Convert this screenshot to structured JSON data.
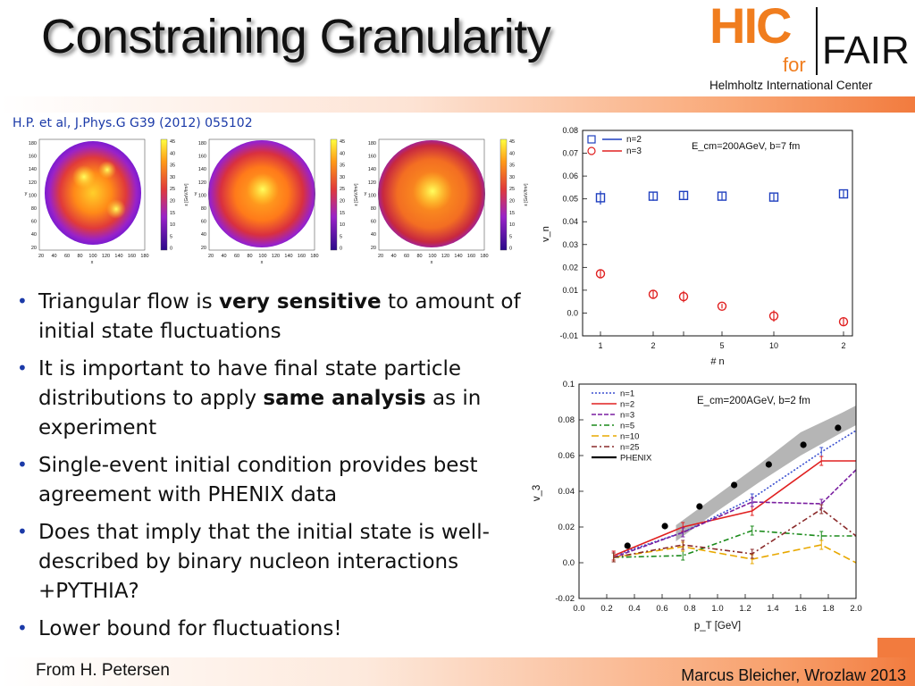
{
  "title": "Constraining Granularity",
  "logo": {
    "hic": "HIC",
    "for": "for",
    "fair": "FAIR",
    "subtitle": "Helmholtz International Center"
  },
  "reference": "H.P. et al, J.Phys.G G39 (2012) 055102",
  "heatmaps": {
    "axis_ticks_y": [
      "180",
      "160",
      "140",
      "120",
      "100",
      "80",
      "60",
      "40",
      "20"
    ],
    "axis_ticks_x": [
      "20",
      "40",
      "60",
      "80",
      "100",
      "120",
      "140",
      "160",
      "180"
    ],
    "colorbar_ticks": [
      "45",
      "40",
      "35",
      "30",
      "25",
      "20",
      "15",
      "10",
      "5",
      "0"
    ],
    "xlabel": "x",
    "ylabel": "y",
    "colorbar_label": "ε [GeV/fm³]"
  },
  "bullets": [
    {
      "pre": "Triangular flow is ",
      "bold": "very sensitive",
      "post": " to amount of initial state fluctuations"
    },
    {
      "pre": "It is important to have final state particle distributions to apply ",
      "bold": "same analysis",
      "post": " as in experiment"
    },
    {
      "pre": "Single-event initial condition provides best agreement with PHENIX data",
      "bold": "",
      "post": ""
    },
    {
      "pre": "Does that imply that the initial state is well-described by binary nucleon interactions +PYTHIA?",
      "bold": "",
      "post": ""
    },
    {
      "pre": "Lower bound for fluctuations!",
      "bold": "",
      "post": ""
    }
  ],
  "footer": {
    "from": "From H. Petersen",
    "author": "Marcus Bleicher, Wrozlaw 2013"
  },
  "colors": {
    "accent": "#f27b3e",
    "blue": "#1f3fbf",
    "red": "#e02020",
    "bullet": "#1b3aa8"
  },
  "chart_data": [
    {
      "type": "scatter",
      "annotation": "E_cm=200AGeV, b=7 fm",
      "ylabel": "v_n",
      "xlabel": "# n",
      "x_ticks": [
        "1",
        "2",
        "",
        "5",
        "10",
        "2"
      ],
      "y_ticks": [
        "0.08",
        "0.07",
        "0.06",
        "0.05",
        "0.04",
        "0.03",
        "0.02",
        "0.01",
        "0.0",
        "-0.01"
      ],
      "ylim": [
        -0.01,
        0.08
      ],
      "series": [
        {
          "name": "n=2",
          "color": "#1f3fbf",
          "marker": "square",
          "values": [
            0.0505,
            0.0512,
            0.0515,
            0.0512,
            0.0508,
            0.0522
          ],
          "errors": [
            0.003,
            0.002,
            0.0015,
            0.0015,
            0.0015,
            0.0015
          ]
        },
        {
          "name": "n=3",
          "color": "#e02020",
          "marker": "circle",
          "values": [
            0.0172,
            0.0082,
            0.0072,
            0.003,
            -0.0013,
            -0.0038
          ],
          "errors": [
            0.0015,
            0.0015,
            0.0025,
            0.001,
            0.0025,
            0.0015
          ]
        }
      ]
    },
    {
      "type": "line",
      "annotation": "E_cm=200AGeV, b=2 fm",
      "ylabel": "v_3",
      "xlabel": "p_T [GeV]",
      "x_ticks": [
        "0.0",
        "0.2",
        "0.4",
        "0.6",
        "0.8",
        "1.0",
        "1.2",
        "1.4",
        "1.6",
        "1.8",
        "2.0"
      ],
      "y_ticks": [
        "0.1",
        "0.08",
        "0.06",
        "0.04",
        "0.02",
        "0.0",
        "-0.02"
      ],
      "xlim": [
        0.0,
        2.0
      ],
      "ylim": [
        -0.02,
        0.1
      ],
      "x": [
        0.25,
        0.75,
        1.25,
        1.75,
        2.0
      ],
      "series": [
        {
          "name": "n=1",
          "color": "#3a4fd0",
          "dash": "2,2",
          "values": [
            0.004,
            0.017,
            0.036,
            0.062,
            0.074
          ]
        },
        {
          "name": "n=2",
          "color": "#e02020",
          "dash": "",
          "values": [
            0.004,
            0.02,
            0.029,
            0.057,
            0.057
          ]
        },
        {
          "name": "n=3",
          "color": "#7a1fa0",
          "dash": "5,2",
          "values": [
            0.003,
            0.017,
            0.034,
            0.033,
            0.052
          ]
        },
        {
          "name": "n=5",
          "color": "#1a8a1a",
          "dash": "6,3,2,3",
          "values": [
            0.003,
            0.004,
            0.018,
            0.015,
            0.015
          ]
        },
        {
          "name": "n=10",
          "color": "#e8a800",
          "dash": "8,4",
          "values": [
            0.003,
            0.009,
            0.002,
            0.01,
            0.0
          ]
        },
        {
          "name": "n=25",
          "color": "#8a2a2a",
          "dash": "6,3,2,3",
          "values": [
            0.003,
            0.01,
            0.005,
            0.03,
            0.015
          ]
        }
      ],
      "phenix": {
        "name": "PHENIX",
        "x": [
          0.35,
          0.62,
          0.87,
          1.12,
          1.37,
          1.62,
          1.87
        ],
        "values": [
          0.0095,
          0.0205,
          0.0315,
          0.0435,
          0.055,
          0.066,
          0.0755
        ]
      },
      "band": {
        "x": [
          0.7,
          1.0,
          1.3,
          1.6,
          1.9,
          2.0
        ],
        "low": [
          0.012,
          0.029,
          0.045,
          0.06,
          0.073,
          0.077
        ],
        "high": [
          0.021,
          0.038,
          0.055,
          0.073,
          0.084,
          0.088
        ]
      }
    }
  ]
}
